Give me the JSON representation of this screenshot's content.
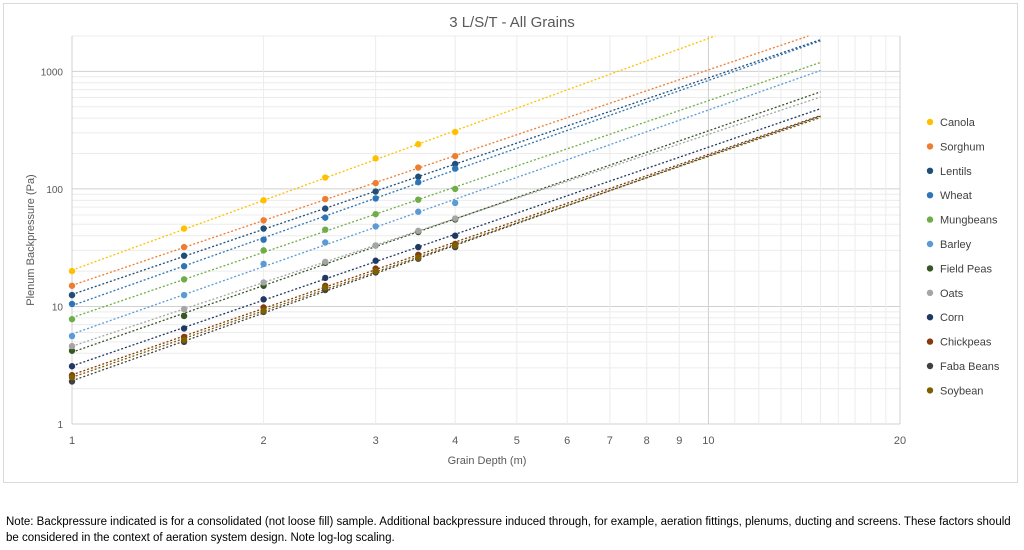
{
  "chart_data": {
    "type": "scatter",
    "title": "3 L/S/T - All Grains",
    "xlabel": "Grain Depth (m)",
    "ylabel": "Plenum Backpressure (Pa)",
    "xscale": "log",
    "yscale": "log",
    "xlim": [
      1,
      20
    ],
    "ylim": [
      1,
      2000
    ],
    "x_ticks": [
      1,
      2,
      3,
      4,
      5,
      6,
      7,
      8,
      9,
      10,
      20
    ],
    "y_ticks": [
      1,
      10,
      100,
      1000
    ],
    "grid": "minor gridlines on both axes",
    "legend_position": "right",
    "trendline": "dotted power fit per series, extended to x = 15",
    "x": [
      1,
      1.5,
      2,
      2.5,
      3,
      3.5,
      4
    ],
    "series": [
      {
        "name": "Canola",
        "color": "#FFC000",
        "values": [
          20,
          46,
          80,
          125,
          182,
          240,
          305
        ]
      },
      {
        "name": "Sorghum",
        "color": "#ED7D31",
        "values": [
          15,
          32,
          54,
          82,
          112,
          152,
          190
        ]
      },
      {
        "name": "Lentils",
        "color": "#1F4E79",
        "values": [
          12.5,
          27,
          46,
          68,
          95,
          127,
          163
        ]
      },
      {
        "name": "Wheat",
        "color": "#2E75B6",
        "values": [
          10.5,
          22,
          37,
          57,
          83,
          114,
          149
        ]
      },
      {
        "name": "Mungbeans",
        "color": "#70AD47",
        "values": [
          7.8,
          17,
          30,
          45,
          61,
          81,
          100
        ]
      },
      {
        "name": "Barley",
        "color": "#5B9BD5",
        "values": [
          5.6,
          12.5,
          23,
          35,
          48,
          64,
          76
        ]
      },
      {
        "name": "Field Peas",
        "color": "#375623",
        "values": [
          4.2,
          8.3,
          15,
          23.5,
          33,
          43,
          55
        ]
      },
      {
        "name": "Oats",
        "color": "#A5A5A5",
        "values": [
          4.6,
          9.5,
          16,
          24,
          33,
          44,
          56
        ]
      },
      {
        "name": "Corn",
        "color": "#203864",
        "values": [
          3.1,
          6.5,
          11.5,
          17.5,
          24.5,
          32,
          40
        ]
      },
      {
        "name": "Chickpeas",
        "color": "#843C0C",
        "values": [
          2.6,
          5.5,
          9.8,
          15,
          21,
          27.5,
          34
        ]
      },
      {
        "name": "Faba Beans",
        "color": "#404040",
        "values": [
          2.3,
          5.0,
          9.0,
          13.8,
          19.5,
          25.5,
          32
        ]
      },
      {
        "name": "Soybean",
        "color": "#7F6000",
        "values": [
          2.5,
          5.2,
          9.2,
          14.5,
          20,
          26,
          33
        ]
      }
    ]
  },
  "note": "Note: Backpressure indicated is for a consolidated (not loose fill) sample. Additional backpressure induced through, for example, aeration fittings, plenums, ducting and screens. These factors should be considered in the context of aeration system design. Note log-log scaling."
}
